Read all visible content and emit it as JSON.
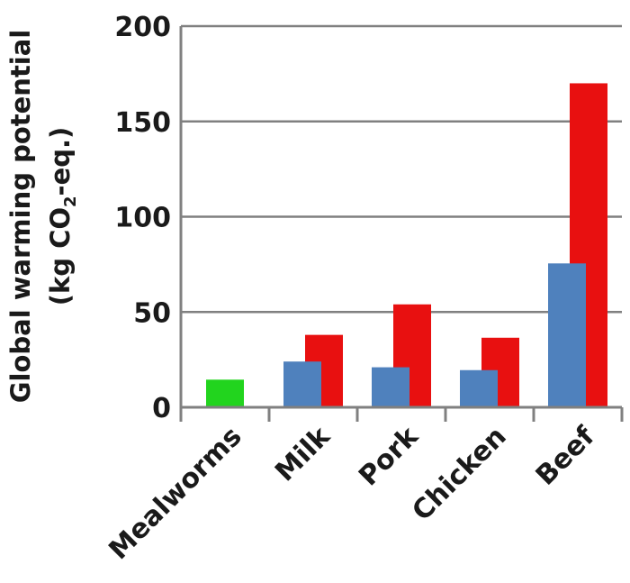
{
  "chart_data": {
    "type": "bar",
    "categories": [
      "Mealworms",
      "Milk",
      "Pork",
      "Chicken",
      "Beef"
    ],
    "series": [
      {
        "color": "#4f81bd",
        "values": [
          null,
          24,
          21,
          19.5,
          75.5
        ]
      },
      {
        "color": "#e81010",
        "values": [
          null,
          38,
          54,
          36.5,
          170
        ]
      },
      {
        "color": "#22d41e",
        "values": [
          14.5,
          null,
          null,
          null,
          null
        ]
      }
    ],
    "ylabel_line1": "Global warming potential",
    "ylabel_line2_prefix": "(kg CO",
    "ylabel_line2_sub": "2",
    "ylabel_line2_suffix": "-eq.)",
    "ylim": [
      0,
      200
    ],
    "yticks": [
      "0",
      "50",
      "100",
      "150",
      "200"
    ],
    "grid": true
  }
}
